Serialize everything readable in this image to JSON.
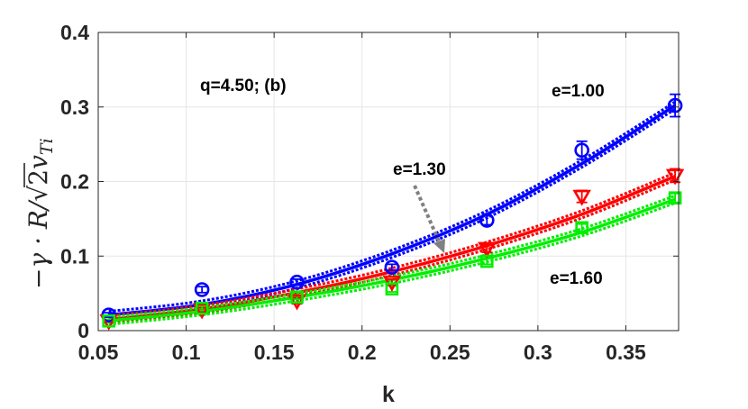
{
  "chart_data": {
    "type": "line",
    "xlabel": "k",
    "ylabel": "−γ · R/√2v_Ti",
    "ylabel_parts": {
      "lead": "−γ · R/",
      "root": "√",
      "two": "2",
      "v": "v",
      "sub": "Ti"
    },
    "xlim": [
      0.05,
      0.38
    ],
    "ylim": [
      0,
      0.4
    ],
    "xticks": [
      "0.05",
      "0.1",
      "0.15",
      "0.2",
      "0.25",
      "0.3",
      "0.35"
    ],
    "xtick_values": [
      0.05,
      0.1,
      0.15,
      0.2,
      0.25,
      0.3,
      0.35
    ],
    "yticks": [
      "0",
      "0.1",
      "0.2",
      "0.3",
      "0.4"
    ],
    "ytick_values": [
      0,
      0.1,
      0.2,
      0.3,
      0.4
    ],
    "grid": true,
    "annotations": {
      "panel": "q=4.50; (b)",
      "e100": "e=1.00",
      "e130": "e=1.30",
      "e160": "e=1.60"
    },
    "x": [
      0.056,
      0.109,
      0.163,
      0.217,
      0.271,
      0.325,
      0.378
    ],
    "series": [
      {
        "color": "#0000ff",
        "marker": "circle",
        "values": [
          0.021,
          0.055,
          0.065,
          0.085,
          0.148,
          0.242,
          0.302
        ],
        "errors": [
          0.003,
          0.004,
          0.004,
          0.004,
          0.006,
          0.012,
          0.015
        ],
        "fit": [
          0.021,
          0.035,
          0.062,
          0.103,
          0.156,
          0.224,
          0.302
        ]
      },
      {
        "color": "#ff0000",
        "marker": "triangle-down",
        "values": [
          0.013,
          0.028,
          0.04,
          0.065,
          0.11,
          0.18,
          0.208
        ],
        "errors": [
          0.002,
          0.003,
          0.004,
          0.004,
          0.005,
          0.008,
          0.009
        ],
        "fit": [
          0.015,
          0.029,
          0.051,
          0.079,
          0.114,
          0.156,
          0.207
        ]
      },
      {
        "color": "#00ee00",
        "marker": "square",
        "values": [
          0.013,
          0.03,
          0.045,
          0.056,
          0.093,
          0.138,
          0.178
        ],
        "errors": [
          0.002,
          0.003,
          0.003,
          0.004,
          0.004,
          0.005,
          0.006
        ],
        "fit": [
          0.013,
          0.026,
          0.045,
          0.068,
          0.097,
          0.132,
          0.176
        ]
      }
    ]
  }
}
